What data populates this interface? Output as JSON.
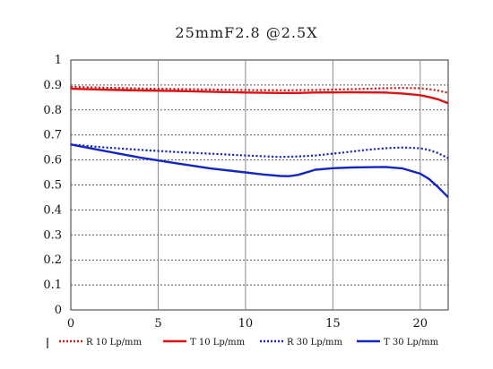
{
  "chart_data": {
    "type": "line",
    "title": "25mmF2.8  @2.5X",
    "xlabel": "",
    "ylabel": "",
    "xlim": [
      0,
      21.6
    ],
    "ylim": [
      0,
      1
    ],
    "x_ticks": [
      "0",
      "5",
      "10",
      "15",
      "20"
    ],
    "x_tick_values": [
      0,
      5,
      10,
      15,
      20
    ],
    "y_ticks": [
      "0",
      "0.1",
      "0.2",
      "0.3",
      "0.4",
      "0.5",
      "0.6",
      "0.7",
      "0.8",
      "0.9",
      "1"
    ],
    "y_tick_values": [
      0,
      0.1,
      0.2,
      0.3,
      0.4,
      0.5,
      0.6,
      0.7,
      0.8,
      0.9,
      1.0
    ],
    "grid": "dashed horizontal, solid vertical",
    "legend_position": "bottom",
    "series": [
      {
        "name": "R 10 Lp/mm",
        "color": "#cc2222",
        "style": "dotted",
        "x": [
          0,
          2,
          4,
          6,
          8,
          10,
          12,
          14,
          16,
          18,
          19,
          20,
          20.5,
          21,
          21.6
        ],
        "y": [
          0.893,
          0.889,
          0.886,
          0.884,
          0.882,
          0.88,
          0.879,
          0.88,
          0.883,
          0.887,
          0.888,
          0.887,
          0.883,
          0.878,
          0.868
        ]
      },
      {
        "name": "T 10 Lp/mm",
        "color": "#dd1111",
        "style": "solid",
        "x": [
          0,
          2,
          4,
          6,
          8,
          10,
          12,
          13,
          14,
          16,
          18,
          19,
          20,
          20.5,
          21,
          21.6
        ],
        "y": [
          0.885,
          0.881,
          0.878,
          0.876,
          0.873,
          0.87,
          0.868,
          0.868,
          0.87,
          0.871,
          0.87,
          0.866,
          0.859,
          0.852,
          0.843,
          0.827
        ]
      },
      {
        "name": "R 30 Lp/mm",
        "color": "#1a2db5",
        "style": "dotted",
        "x": [
          0,
          2,
          4,
          6,
          8,
          10,
          12,
          13,
          14,
          15,
          16,
          17,
          18,
          19,
          20,
          20.5,
          21,
          21.6
        ],
        "y": [
          0.662,
          0.65,
          0.64,
          0.632,
          0.625,
          0.618,
          0.612,
          0.614,
          0.618,
          0.625,
          0.633,
          0.641,
          0.647,
          0.65,
          0.647,
          0.64,
          0.628,
          0.607
        ]
      },
      {
        "name": "T 30 Lp/mm",
        "color": "#1326c2",
        "style": "solid",
        "x": [
          0,
          2,
          4,
          6,
          8,
          10,
          11,
          12,
          12.5,
          13,
          14,
          15,
          16,
          17,
          18,
          19,
          20,
          20.5,
          21,
          21.6
        ],
        "y": [
          0.662,
          0.635,
          0.609,
          0.587,
          0.566,
          0.55,
          0.542,
          0.536,
          0.535,
          0.54,
          0.561,
          0.567,
          0.57,
          0.571,
          0.572,
          0.566,
          0.545,
          0.524,
          0.493,
          0.451
        ]
      }
    ]
  }
}
